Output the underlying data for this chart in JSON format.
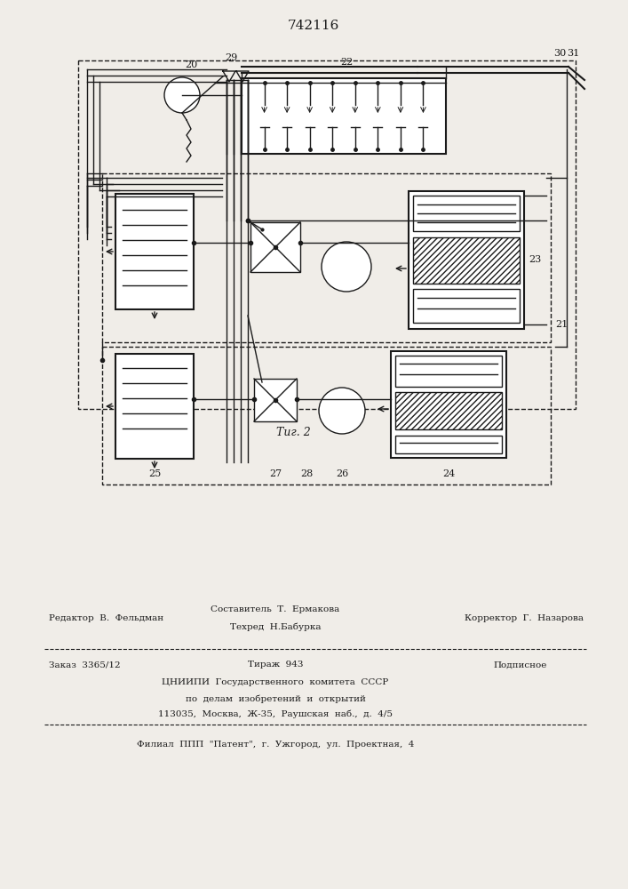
{
  "patent_number": "742116",
  "fig_label": "Τиг. 2",
  "bg_color": "#f0ede8",
  "line_color": "#1a1a1a",
  "editor_line": "Редактор  В.  Фельдман",
  "composer_line1": "Составитель  Т.  Ермакова",
  "composer_line2": "Техред  Н.Бабурка",
  "corrector_line": "Корректор  Г.  Назарова",
  "order_line": "Заказ  3365/12",
  "tirazh_line": "Тираж  943",
  "podpisnoe_line": "Подписное",
  "tsniipi_line1": "ЦНИИПИ  Государственного  комитета  СССР",
  "tsniipi_line2": "по  делам  изобретений  и  открытий",
  "tsniipi_line3": "113035,  Москва,  Ж-35,  Раушская  наб.,  д.  4/5",
  "filial_line": "Филиал  ППП  \"Патент\",  г.  Ужгород,  ул.  Проектная,  4"
}
